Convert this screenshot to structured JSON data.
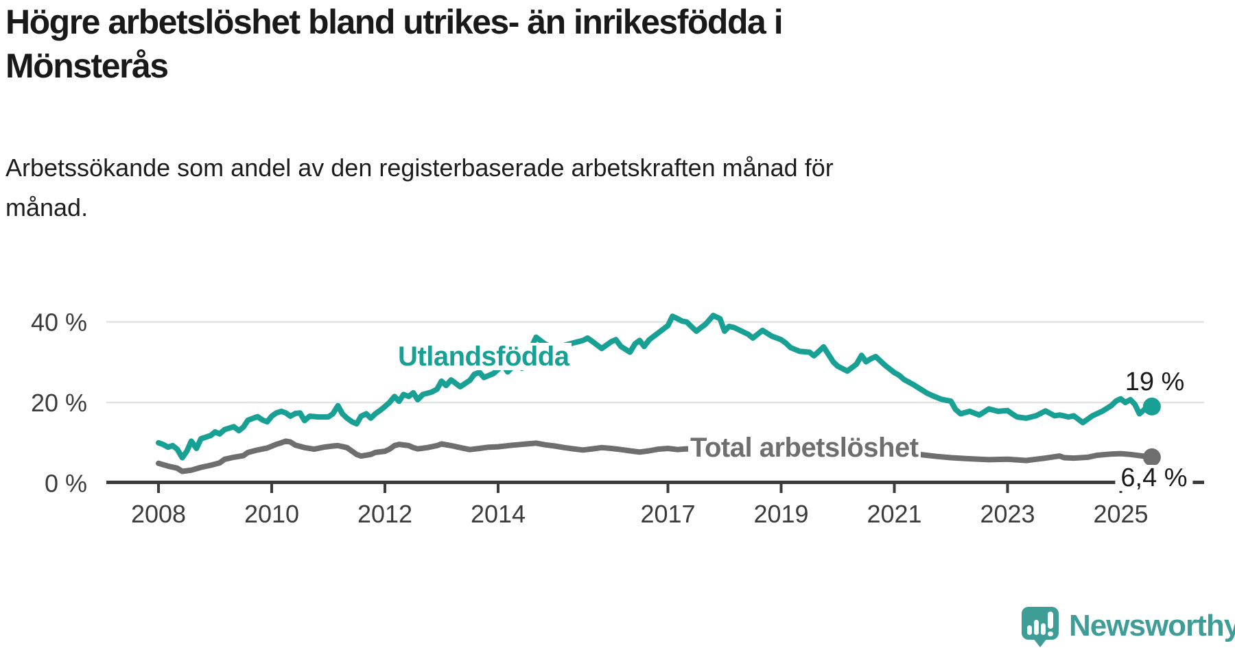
{
  "header": {
    "title_line1": "Högre arbetslöshet bland utrikes- än inrikesfödda i",
    "title_line2": "Mönsterås",
    "subtitle_line1": "Arbetssökande som andel av den registerbaserade arbetskraften månad för",
    "subtitle_line2": "månad."
  },
  "branding": {
    "name": "Newsworthy",
    "logo_icon": "speech-bubble-bar-chart-exclamation",
    "color": "#3f9d98"
  },
  "colors": {
    "teal_series": "#17a093",
    "gray_series": "#6e6e6e",
    "axis": "#3b3b3b",
    "gridline": "#e3e3e3",
    "text": "#191919"
  },
  "chart_data": {
    "type": "line",
    "title": "Högre arbetslöshet bland utrikes- än inrikesfödda i Mönsterås",
    "subtitle": "Arbetssökande som andel av den registerbaserade arbetskraften månad för månad.",
    "unit": "%",
    "grid": "horizontal-only",
    "xlim": [
      2007.9,
      2025.8
    ],
    "ylim": [
      0,
      44
    ],
    "x_ticks": [
      {
        "year": 2008,
        "label": "2008"
      },
      {
        "year": 2010,
        "label": "2010"
      },
      {
        "year": 2012,
        "label": "2012"
      },
      {
        "year": 2014,
        "label": "2014"
      },
      {
        "year": 2017,
        "label": "2017"
      },
      {
        "year": 2019,
        "label": "2019"
      },
      {
        "year": 2021,
        "label": "2021"
      },
      {
        "year": 2023,
        "label": "2023"
      },
      {
        "year": 2025,
        "label": "2025"
      }
    ],
    "y_ticks": [
      {
        "value": 0,
        "label": "0 %"
      },
      {
        "value": 20,
        "label": "20 %"
      },
      {
        "value": 40,
        "label": "40 %"
      }
    ],
    "series": [
      {
        "name": "Utlandsfödda",
        "color": "#17a093",
        "end_label": "19 %",
        "end_value": 19,
        "points": [
          [
            2008.0,
            10.0
          ],
          [
            2008.08,
            9.6
          ],
          [
            2008.17,
            8.9
          ],
          [
            2008.25,
            9.3
          ],
          [
            2008.33,
            8.4
          ],
          [
            2008.42,
            6.3
          ],
          [
            2008.5,
            7.9
          ],
          [
            2008.58,
            10.4
          ],
          [
            2008.67,
            8.6
          ],
          [
            2008.75,
            11.0
          ],
          [
            2008.92,
            11.8
          ],
          [
            2009.0,
            12.7
          ],
          [
            2009.08,
            12.2
          ],
          [
            2009.17,
            13.3
          ],
          [
            2009.33,
            14.0
          ],
          [
            2009.42,
            13.0
          ],
          [
            2009.5,
            13.9
          ],
          [
            2009.58,
            15.6
          ],
          [
            2009.75,
            16.5
          ],
          [
            2009.83,
            15.7
          ],
          [
            2009.92,
            15.2
          ],
          [
            2010.0,
            16.6
          ],
          [
            2010.08,
            17.4
          ],
          [
            2010.17,
            17.8
          ],
          [
            2010.25,
            17.4
          ],
          [
            2010.33,
            16.6
          ],
          [
            2010.42,
            17.3
          ],
          [
            2010.5,
            17.4
          ],
          [
            2010.58,
            15.5
          ],
          [
            2010.67,
            16.6
          ],
          [
            2010.83,
            16.4
          ],
          [
            2011.0,
            16.4
          ],
          [
            2011.08,
            17.2
          ],
          [
            2011.17,
            19.2
          ],
          [
            2011.25,
            17.2
          ],
          [
            2011.33,
            16.1
          ],
          [
            2011.42,
            15.2
          ],
          [
            2011.5,
            14.7
          ],
          [
            2011.58,
            16.6
          ],
          [
            2011.67,
            17.2
          ],
          [
            2011.75,
            16.1
          ],
          [
            2011.83,
            17.2
          ],
          [
            2011.92,
            18.1
          ],
          [
            2012.0,
            19.0
          ],
          [
            2012.08,
            20.0
          ],
          [
            2012.17,
            21.5
          ],
          [
            2012.25,
            20.3
          ],
          [
            2012.33,
            22.0
          ],
          [
            2012.42,
            21.5
          ],
          [
            2012.5,
            22.4
          ],
          [
            2012.58,
            20.7
          ],
          [
            2012.67,
            22.0
          ],
          [
            2012.83,
            22.6
          ],
          [
            2012.92,
            23.3
          ],
          [
            2013.0,
            25.3
          ],
          [
            2013.08,
            24.2
          ],
          [
            2013.17,
            25.6
          ],
          [
            2013.33,
            23.9
          ],
          [
            2013.5,
            25.5
          ],
          [
            2013.58,
            27.0
          ],
          [
            2013.67,
            27.5
          ],
          [
            2013.75,
            26.2
          ],
          [
            2013.92,
            27.2
          ],
          [
            2014.0,
            28.2
          ],
          [
            2014.08,
            29.4
          ],
          [
            2014.17,
            27.6
          ],
          [
            2014.33,
            29.9
          ],
          [
            2014.42,
            28.5
          ],
          [
            2014.5,
            30.5
          ],
          [
            2014.58,
            33.5
          ],
          [
            2014.67,
            36.2
          ],
          [
            2014.83,
            34.5
          ],
          [
            2015.0,
            33.5
          ],
          [
            2015.17,
            34.2
          ],
          [
            2015.33,
            34.8
          ],
          [
            2015.5,
            35.4
          ],
          [
            2015.58,
            36.0
          ],
          [
            2015.67,
            35.1
          ],
          [
            2015.83,
            33.4
          ],
          [
            2016.0,
            35.1
          ],
          [
            2016.08,
            35.6
          ],
          [
            2016.17,
            33.9
          ],
          [
            2016.33,
            32.5
          ],
          [
            2016.42,
            34.6
          ],
          [
            2016.5,
            35.4
          ],
          [
            2016.58,
            33.9
          ],
          [
            2016.67,
            35.6
          ],
          [
            2016.83,
            37.3
          ],
          [
            2017.0,
            39.1
          ],
          [
            2017.08,
            41.4
          ],
          [
            2017.17,
            40.8
          ],
          [
            2017.25,
            40.2
          ],
          [
            2017.33,
            40.0
          ],
          [
            2017.5,
            37.7
          ],
          [
            2017.67,
            39.5
          ],
          [
            2017.8,
            41.6
          ],
          [
            2017.92,
            40.8
          ],
          [
            2018.0,
            37.7
          ],
          [
            2018.08,
            38.9
          ],
          [
            2018.17,
            38.6
          ],
          [
            2018.42,
            36.9
          ],
          [
            2018.5,
            36.0
          ],
          [
            2018.67,
            37.9
          ],
          [
            2018.83,
            36.5
          ],
          [
            2019.0,
            35.6
          ],
          [
            2019.08,
            34.8
          ],
          [
            2019.17,
            33.6
          ],
          [
            2019.33,
            32.7
          ],
          [
            2019.5,
            32.5
          ],
          [
            2019.58,
            31.6
          ],
          [
            2019.75,
            33.8
          ],
          [
            2019.92,
            30.1
          ],
          [
            2020.0,
            29.0
          ],
          [
            2020.17,
            27.8
          ],
          [
            2020.33,
            29.5
          ],
          [
            2020.42,
            31.7
          ],
          [
            2020.5,
            30.1
          ],
          [
            2020.58,
            30.8
          ],
          [
            2020.67,
            31.4
          ],
          [
            2020.83,
            29.3
          ],
          [
            2021.0,
            27.4
          ],
          [
            2021.08,
            26.8
          ],
          [
            2021.17,
            25.7
          ],
          [
            2021.33,
            24.5
          ],
          [
            2021.42,
            23.7
          ],
          [
            2021.58,
            22.3
          ],
          [
            2021.67,
            21.7
          ],
          [
            2021.83,
            20.8
          ],
          [
            2022.0,
            20.3
          ],
          [
            2022.08,
            18.3
          ],
          [
            2022.17,
            17.2
          ],
          [
            2022.33,
            17.8
          ],
          [
            2022.5,
            16.9
          ],
          [
            2022.67,
            18.4
          ],
          [
            2022.83,
            17.8
          ],
          [
            2023.0,
            18.0
          ],
          [
            2023.08,
            17.2
          ],
          [
            2023.17,
            16.4
          ],
          [
            2023.33,
            16.1
          ],
          [
            2023.5,
            16.7
          ],
          [
            2023.67,
            17.9
          ],
          [
            2023.83,
            16.7
          ],
          [
            2023.92,
            16.9
          ],
          [
            2024.08,
            16.4
          ],
          [
            2024.17,
            16.7
          ],
          [
            2024.33,
            15.0
          ],
          [
            2024.5,
            16.7
          ],
          [
            2024.67,
            17.8
          ],
          [
            2024.83,
            19.2
          ],
          [
            2024.92,
            20.4
          ],
          [
            2025.0,
            20.9
          ],
          [
            2025.08,
            20.0
          ],
          [
            2025.17,
            20.7
          ],
          [
            2025.25,
            19.5
          ],
          [
            2025.33,
            17.2
          ],
          [
            2025.42,
            18.3
          ],
          [
            2025.55,
            19.0
          ]
        ]
      },
      {
        "name": "Total arbetslöshet",
        "color": "#6e6e6e",
        "end_label": "6,4 %",
        "end_value": 6.4,
        "points": [
          [
            2008.0,
            4.9
          ],
          [
            2008.17,
            4.2
          ],
          [
            2008.33,
            3.7
          ],
          [
            2008.42,
            2.9
          ],
          [
            2008.58,
            3.2
          ],
          [
            2008.75,
            3.9
          ],
          [
            2008.92,
            4.4
          ],
          [
            2009.08,
            5.0
          ],
          [
            2009.17,
            5.9
          ],
          [
            2009.33,
            6.4
          ],
          [
            2009.5,
            6.8
          ],
          [
            2009.58,
            7.6
          ],
          [
            2009.75,
            8.2
          ],
          [
            2009.92,
            8.7
          ],
          [
            2010.08,
            9.6
          ],
          [
            2010.17,
            10.0
          ],
          [
            2010.25,
            10.4
          ],
          [
            2010.33,
            10.2
          ],
          [
            2010.42,
            9.4
          ],
          [
            2010.58,
            8.8
          ],
          [
            2010.75,
            8.4
          ],
          [
            2010.92,
            8.9
          ],
          [
            2011.08,
            9.2
          ],
          [
            2011.17,
            9.3
          ],
          [
            2011.33,
            8.8
          ],
          [
            2011.42,
            7.9
          ],
          [
            2011.5,
            7.1
          ],
          [
            2011.58,
            6.7
          ],
          [
            2011.75,
            7.1
          ],
          [
            2011.83,
            7.6
          ],
          [
            2012.0,
            7.9
          ],
          [
            2012.08,
            8.4
          ],
          [
            2012.17,
            9.3
          ],
          [
            2012.25,
            9.6
          ],
          [
            2012.42,
            9.3
          ],
          [
            2012.5,
            8.8
          ],
          [
            2012.58,
            8.5
          ],
          [
            2012.75,
            8.8
          ],
          [
            2012.92,
            9.3
          ],
          [
            2013.0,
            9.7
          ],
          [
            2013.17,
            9.3
          ],
          [
            2013.33,
            8.8
          ],
          [
            2013.5,
            8.3
          ],
          [
            2013.67,
            8.6
          ],
          [
            2013.83,
            8.9
          ],
          [
            2014.0,
            9.0
          ],
          [
            2014.25,
            9.4
          ],
          [
            2014.5,
            9.7
          ],
          [
            2014.67,
            9.9
          ],
          [
            2014.83,
            9.5
          ],
          [
            2015.0,
            9.2
          ],
          [
            2015.17,
            8.8
          ],
          [
            2015.33,
            8.5
          ],
          [
            2015.5,
            8.2
          ],
          [
            2015.67,
            8.5
          ],
          [
            2015.83,
            8.8
          ],
          [
            2016.0,
            8.6
          ],
          [
            2016.17,
            8.3
          ],
          [
            2016.33,
            8.0
          ],
          [
            2016.5,
            7.7
          ],
          [
            2016.67,
            8.0
          ],
          [
            2016.83,
            8.4
          ],
          [
            2017.0,
            8.6
          ],
          [
            2017.17,
            8.3
          ],
          [
            2017.33,
            8.5
          ],
          [
            2017.5,
            8.4
          ],
          [
            2017.75,
            8.2
          ],
          [
            2018.0,
            7.9
          ],
          [
            2018.25,
            7.7
          ],
          [
            2018.5,
            7.5
          ],
          [
            2018.75,
            7.4
          ],
          [
            2019.0,
            7.3
          ],
          [
            2019.25,
            7.2
          ],
          [
            2019.5,
            7.1
          ],
          [
            2019.75,
            7.2
          ],
          [
            2020.0,
            7.4
          ],
          [
            2020.25,
            7.9
          ],
          [
            2020.42,
            8.2
          ],
          [
            2020.58,
            8.0
          ],
          [
            2020.83,
            7.8
          ],
          [
            2021.0,
            7.6
          ],
          [
            2021.25,
            7.3
          ],
          [
            2021.5,
            7.0
          ],
          [
            2021.75,
            6.6
          ],
          [
            2022.0,
            6.3
          ],
          [
            2022.25,
            6.1
          ],
          [
            2022.5,
            5.9
          ],
          [
            2022.67,
            5.8
          ],
          [
            2023.0,
            5.9
          ],
          [
            2023.33,
            5.6
          ],
          [
            2023.5,
            5.9
          ],
          [
            2023.67,
            6.2
          ],
          [
            2023.92,
            6.7
          ],
          [
            2024.0,
            6.3
          ],
          [
            2024.17,
            6.2
          ],
          [
            2024.42,
            6.4
          ],
          [
            2024.58,
            6.9
          ],
          [
            2024.83,
            7.2
          ],
          [
            2025.0,
            7.3
          ],
          [
            2025.17,
            7.1
          ],
          [
            2025.33,
            6.8
          ],
          [
            2025.45,
            6.6
          ],
          [
            2025.55,
            6.4
          ]
        ]
      }
    ]
  }
}
